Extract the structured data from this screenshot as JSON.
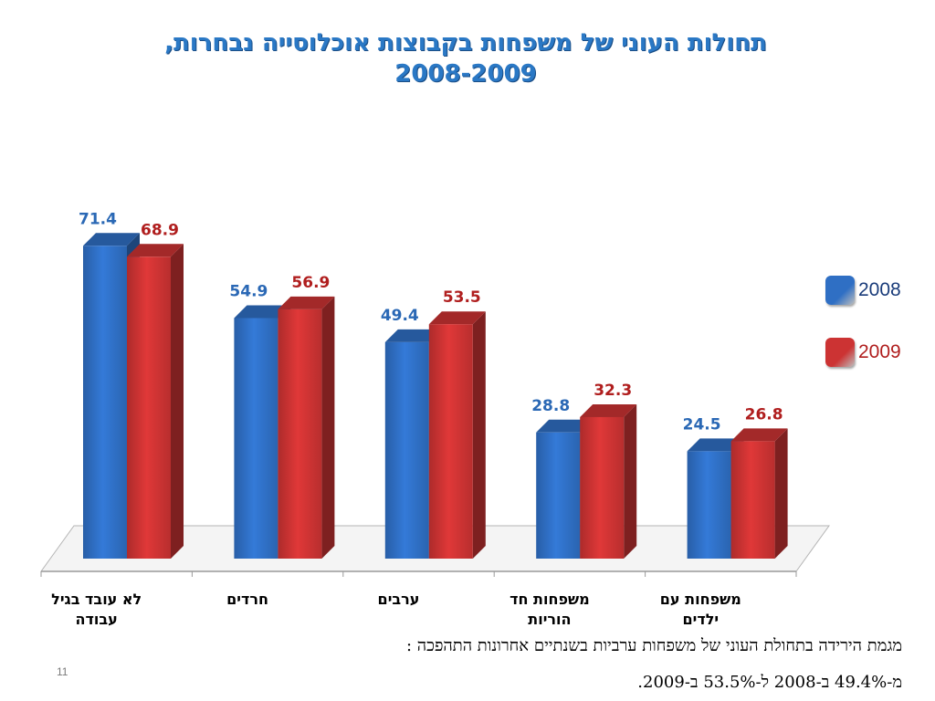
{
  "title": {
    "line1": "תחולות העוני של משפחות בקבוצות אוכלוסייה נבחרות,",
    "line2": "2008-2009"
  },
  "legend": [
    {
      "label": "2008",
      "color": "#2f6fc4"
    },
    {
      "label": "2009",
      "color": "#cc3333"
    }
  ],
  "chart_data": {
    "type": "bar",
    "categories": [
      [
        "לא עובד בגיל",
        "עבודה"
      ],
      [
        "חרדים"
      ],
      [
        "ערבים"
      ],
      [
        "משפחות חד",
        "הוריות"
      ],
      [
        "משפחות עם",
        "ילדים"
      ]
    ],
    "series": [
      {
        "name": "2008",
        "values": [
          71.4,
          54.9,
          49.4,
          28.8,
          24.5
        ],
        "color": "#2f6fc4",
        "label_color": "#2a68b5"
      },
      {
        "name": "2009",
        "values": [
          68.9,
          56.9,
          53.5,
          32.3,
          26.8
        ],
        "color": "#cc3333",
        "label_color": "#b01e1e"
      }
    ],
    "grid": false,
    "legend_position": "right"
  },
  "notes": {
    "line1": "מגמת הירידה בתחולת העוני של משפחות ערביות בשנתיים אחרונות התהפכה :",
    "line2": "מ-49.4% ב-2008 ל-53.5% ב-2009."
  },
  "page_number": "11"
}
